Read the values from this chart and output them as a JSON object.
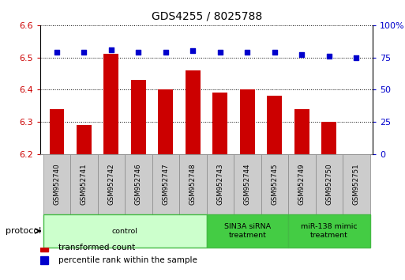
{
  "title": "GDS4255 / 8025788",
  "samples": [
    "GSM952740",
    "GSM952741",
    "GSM952742",
    "GSM952746",
    "GSM952747",
    "GSM952748",
    "GSM952743",
    "GSM952744",
    "GSM952745",
    "GSM952749",
    "GSM952750",
    "GSM952751"
  ],
  "bar_values": [
    6.34,
    6.29,
    6.51,
    6.43,
    6.4,
    6.46,
    6.39,
    6.4,
    6.38,
    6.34,
    6.3,
    6.2
  ],
  "percentile_values": [
    79,
    79,
    81,
    79,
    79,
    80,
    79,
    79,
    79,
    77,
    76,
    75
  ],
  "ylim_left": [
    6.2,
    6.6
  ],
  "ylim_right": [
    0,
    100
  ],
  "yticks_left": [
    6.2,
    6.3,
    6.4,
    6.5,
    6.6
  ],
  "yticks_right": [
    0,
    25,
    50,
    75,
    100
  ],
  "bar_color": "#cc0000",
  "dot_color": "#0000cc",
  "grid_color": "#000000",
  "protocol_groups": [
    {
      "label": "control",
      "start": 0,
      "end": 6,
      "color": "#ccffcc",
      "border_color": "#44bb44"
    },
    {
      "label": "SIN3A siRNA\ntreatment",
      "start": 6,
      "end": 9,
      "color": "#44cc44",
      "border_color": "#44bb44"
    },
    {
      "label": "miR-138 mimic\ntreatment",
      "start": 9,
      "end": 12,
      "color": "#44cc44",
      "border_color": "#44bb44"
    }
  ],
  "legend_labels": [
    "transformed count",
    "percentile rank within the sample"
  ],
  "legend_colors": [
    "#cc0000",
    "#0000cc"
  ],
  "bar_width": 0.55,
  "base_value": 6.2,
  "title_fontsize": 10
}
